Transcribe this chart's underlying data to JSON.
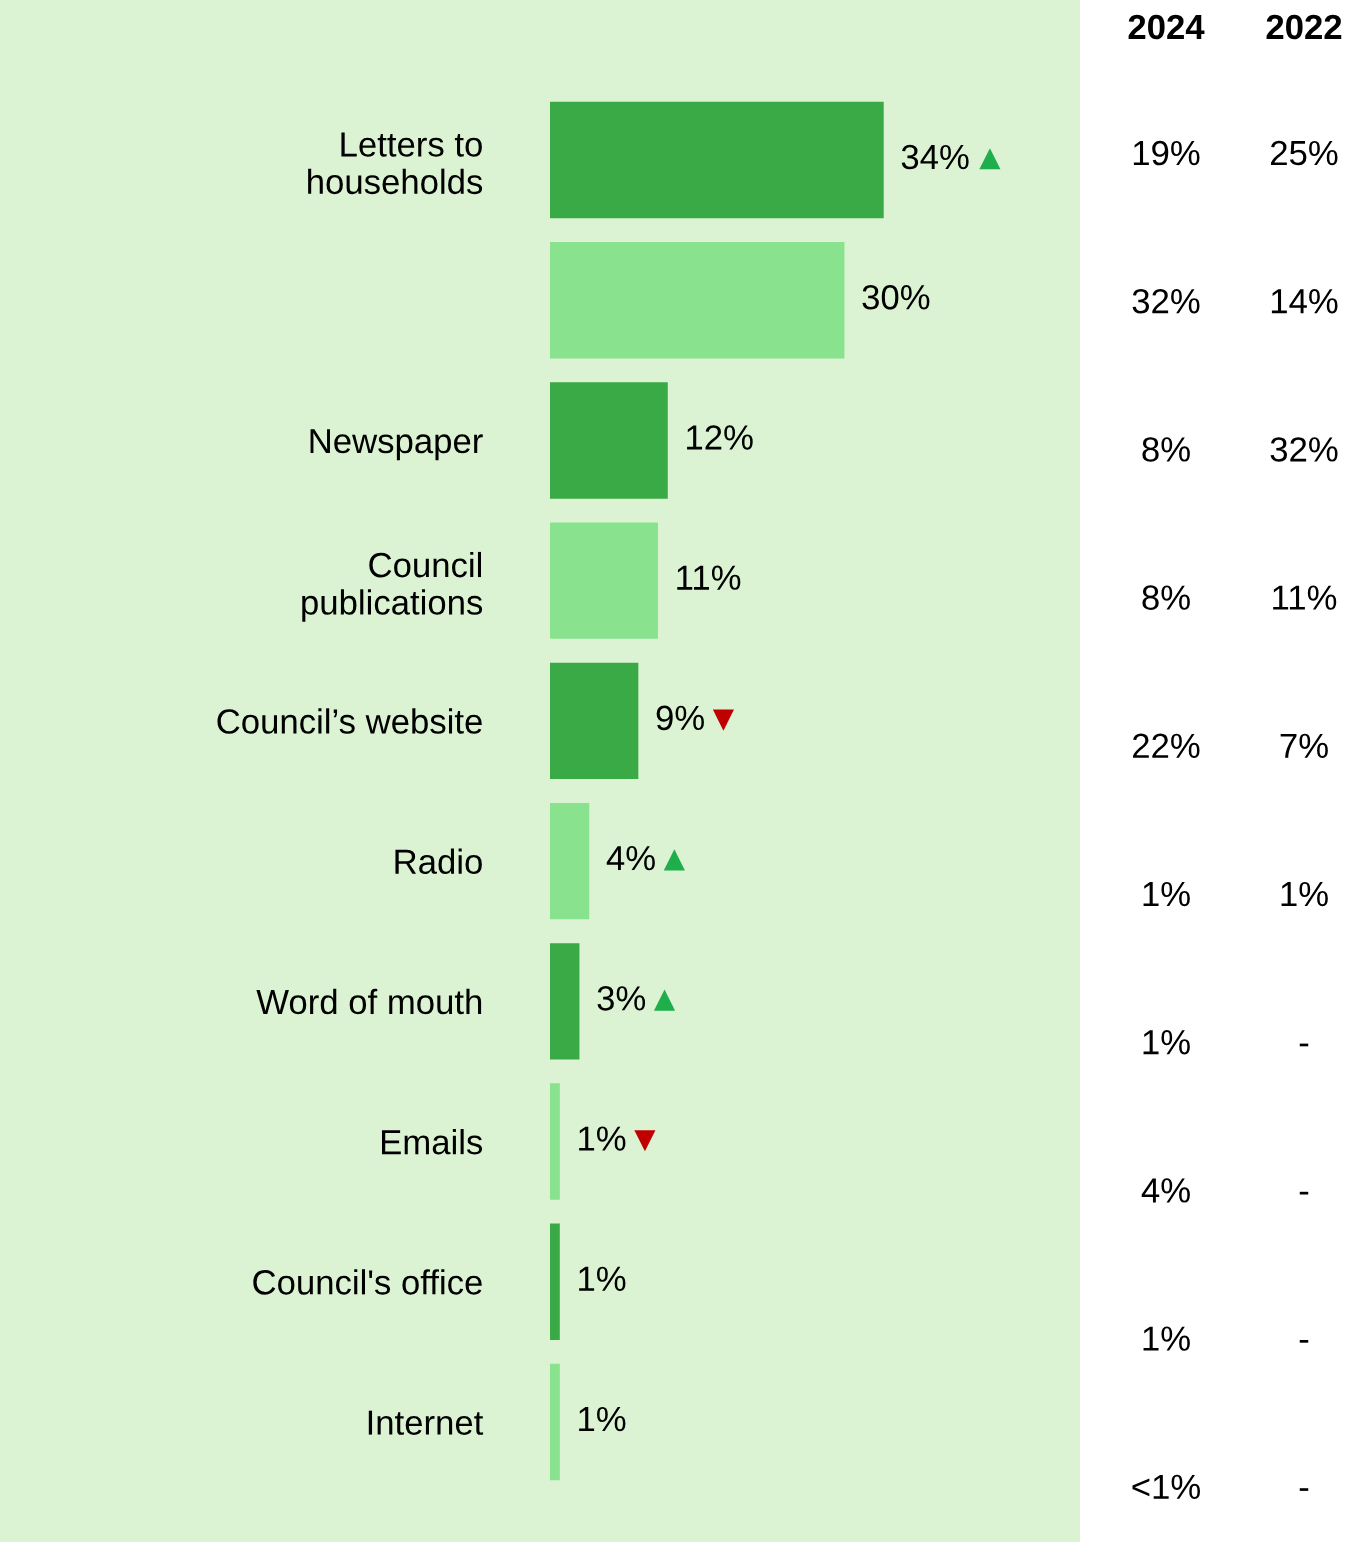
{
  "chart_data": {
    "type": "bar",
    "orientation": "horizontal",
    "categories": [
      "Letters to\nhouseholds",
      null,
      "Newspaper",
      "Council\npublications",
      "Council’s website",
      "Radio",
      "Word of mouth",
      "Emails",
      "Council's office",
      "Internet"
    ],
    "values": [
      34,
      30,
      12,
      11,
      9,
      4,
      3,
      1,
      1,
      1
    ],
    "colors": [
      "#39aa45",
      "#88e28e",
      "#39aa45",
      "#88e28e",
      "#39aa45",
      "#88e28e",
      "#39aa45",
      "#88e28e",
      "#39aa45",
      "#88e28e"
    ],
    "value_labels": [
      "34%",
      "30%",
      "12%",
      "11%",
      "9%",
      "4%",
      "3%",
      "1%",
      "1%",
      "1%"
    ],
    "xlim": [
      0,
      54
    ],
    "tick_labels": "y",
    "grid": false,
    "legend": false,
    "annotations": [
      "2024",
      "2022",
      "19%",
      "25%",
      "32%",
      "14%",
      "8%",
      "32%",
      "8%",
      "11%",
      "22%",
      "7%",
      "1%",
      "1%",
      "1%",
      "-",
      "4%",
      "-",
      "1%",
      "-",
      "<1%",
      "-",
      {
        "text": "▲",
        "x": 34,
        "y": "Letters to\nhouseholds"
      },
      {
        "text": "▼",
        "x": 9,
        "y": "Council’s website"
      },
      {
        "text": "▲",
        "x": 4,
        "y": "Radio"
      },
      {
        "text": "▲",
        "x": 3,
        "y": "Word of mouth"
      },
      {
        "text": "▼",
        "x": 1,
        "y": "Emails"
      }
    ]
  }
}
